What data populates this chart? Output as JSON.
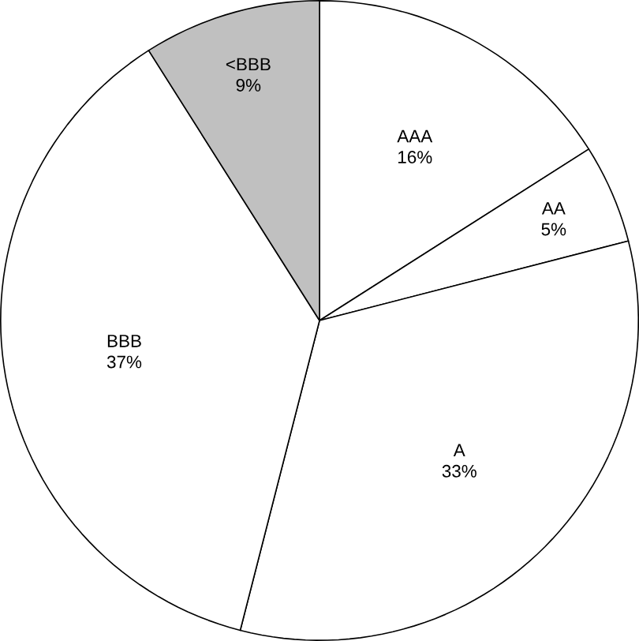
{
  "chart_data": {
    "type": "pie",
    "categories": [
      "AAA",
      "AA",
      "A",
      "BBB",
      "<BBB"
    ],
    "values": [
      16,
      5,
      33,
      37,
      9
    ],
    "value_labels": [
      "16%",
      "5%",
      "33%",
      "37%",
      "9%"
    ],
    "colors": [
      "#ffffff",
      "#ffffff",
      "#ffffff",
      "#ffffff",
      "#c0c0c0"
    ]
  }
}
